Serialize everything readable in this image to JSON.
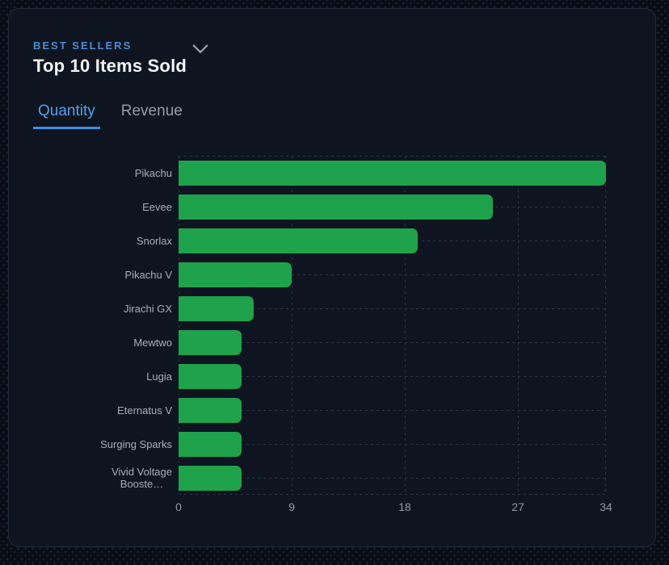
{
  "card": {
    "eyebrow": "BEST SELLERS",
    "title": "Top 10 Items Sold",
    "tabs": [
      {
        "label": "Quantity",
        "active": true
      },
      {
        "label": "Revenue",
        "active": false
      }
    ]
  },
  "chart_data": {
    "type": "bar",
    "orientation": "horizontal",
    "title": "Top 10 Items Sold",
    "categories": [
      "Pikachu",
      "Eevee",
      "Snorlax",
      "Pikachu V",
      "Jirachi GX",
      "Mewtwo",
      "Lugia",
      "Eternatus V",
      "Surging Sparks",
      "Vivid Voltage\nBooste…"
    ],
    "values": [
      34,
      25,
      19,
      9,
      6,
      5,
      5,
      5,
      5,
      5
    ],
    "xlabel": "",
    "ylabel": "",
    "xlim": [
      0,
      34
    ],
    "x_ticks": [
      0,
      9,
      18,
      27,
      34
    ],
    "grid": true,
    "legend": false,
    "bar_color": "#1ea24b"
  },
  "colors": {
    "card_background": "#0e1520",
    "page_background": "#090d15",
    "accent_blue": "#4d8cd4",
    "tab_active_blue": "#53a0ef",
    "tab_underline_blue": "#3e8ee4",
    "bar_green": "#1ea24b",
    "grid_line": "#2a3246"
  }
}
